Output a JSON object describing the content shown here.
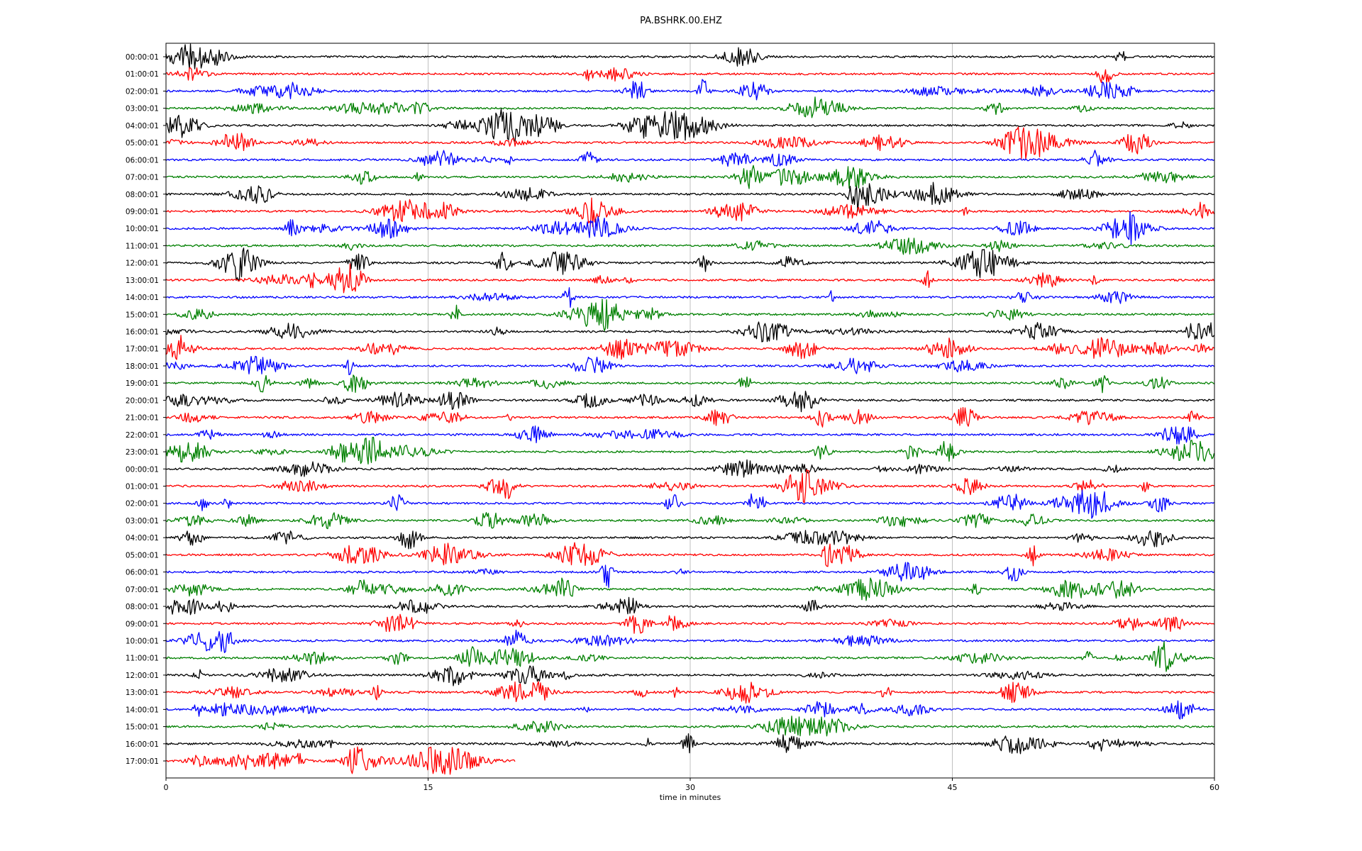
{
  "chart_data": {
    "type": "line",
    "title": "PA.BSHRK.00.EHZ",
    "xlabel": "time in minutes",
    "xlim": [
      0,
      60
    ],
    "xticks": [
      0,
      15,
      30,
      45,
      60
    ],
    "grid": "vertical at x ticks",
    "colors": [
      "#000000",
      "#ff0000",
      "#0000ff",
      "#008000"
    ],
    "rows": [
      "00:00:01",
      "01:00:01",
      "02:00:01",
      "03:00:01",
      "04:00:01",
      "05:00:01",
      "06:00:01",
      "07:00:01",
      "08:00:01",
      "09:00:01",
      "10:00:01",
      "11:00:01",
      "12:00:01",
      "13:00:01",
      "14:00:01",
      "15:00:01",
      "16:00:01",
      "17:00:01",
      "18:00:01",
      "19:00:01",
      "20:00:01",
      "21:00:01",
      "22:00:01",
      "23:00:01",
      "00:00:01",
      "01:00:01",
      "02:00:01",
      "03:00:01",
      "04:00:01",
      "05:00:01",
      "06:00:01",
      "07:00:01",
      "08:00:01",
      "09:00:01",
      "10:00:01",
      "11:00:01",
      "12:00:01",
      "13:00:01",
      "14:00:01",
      "15:00:01",
      "16:00:01",
      "17:00:01"
    ],
    "last_row_end_minute": 20
  }
}
